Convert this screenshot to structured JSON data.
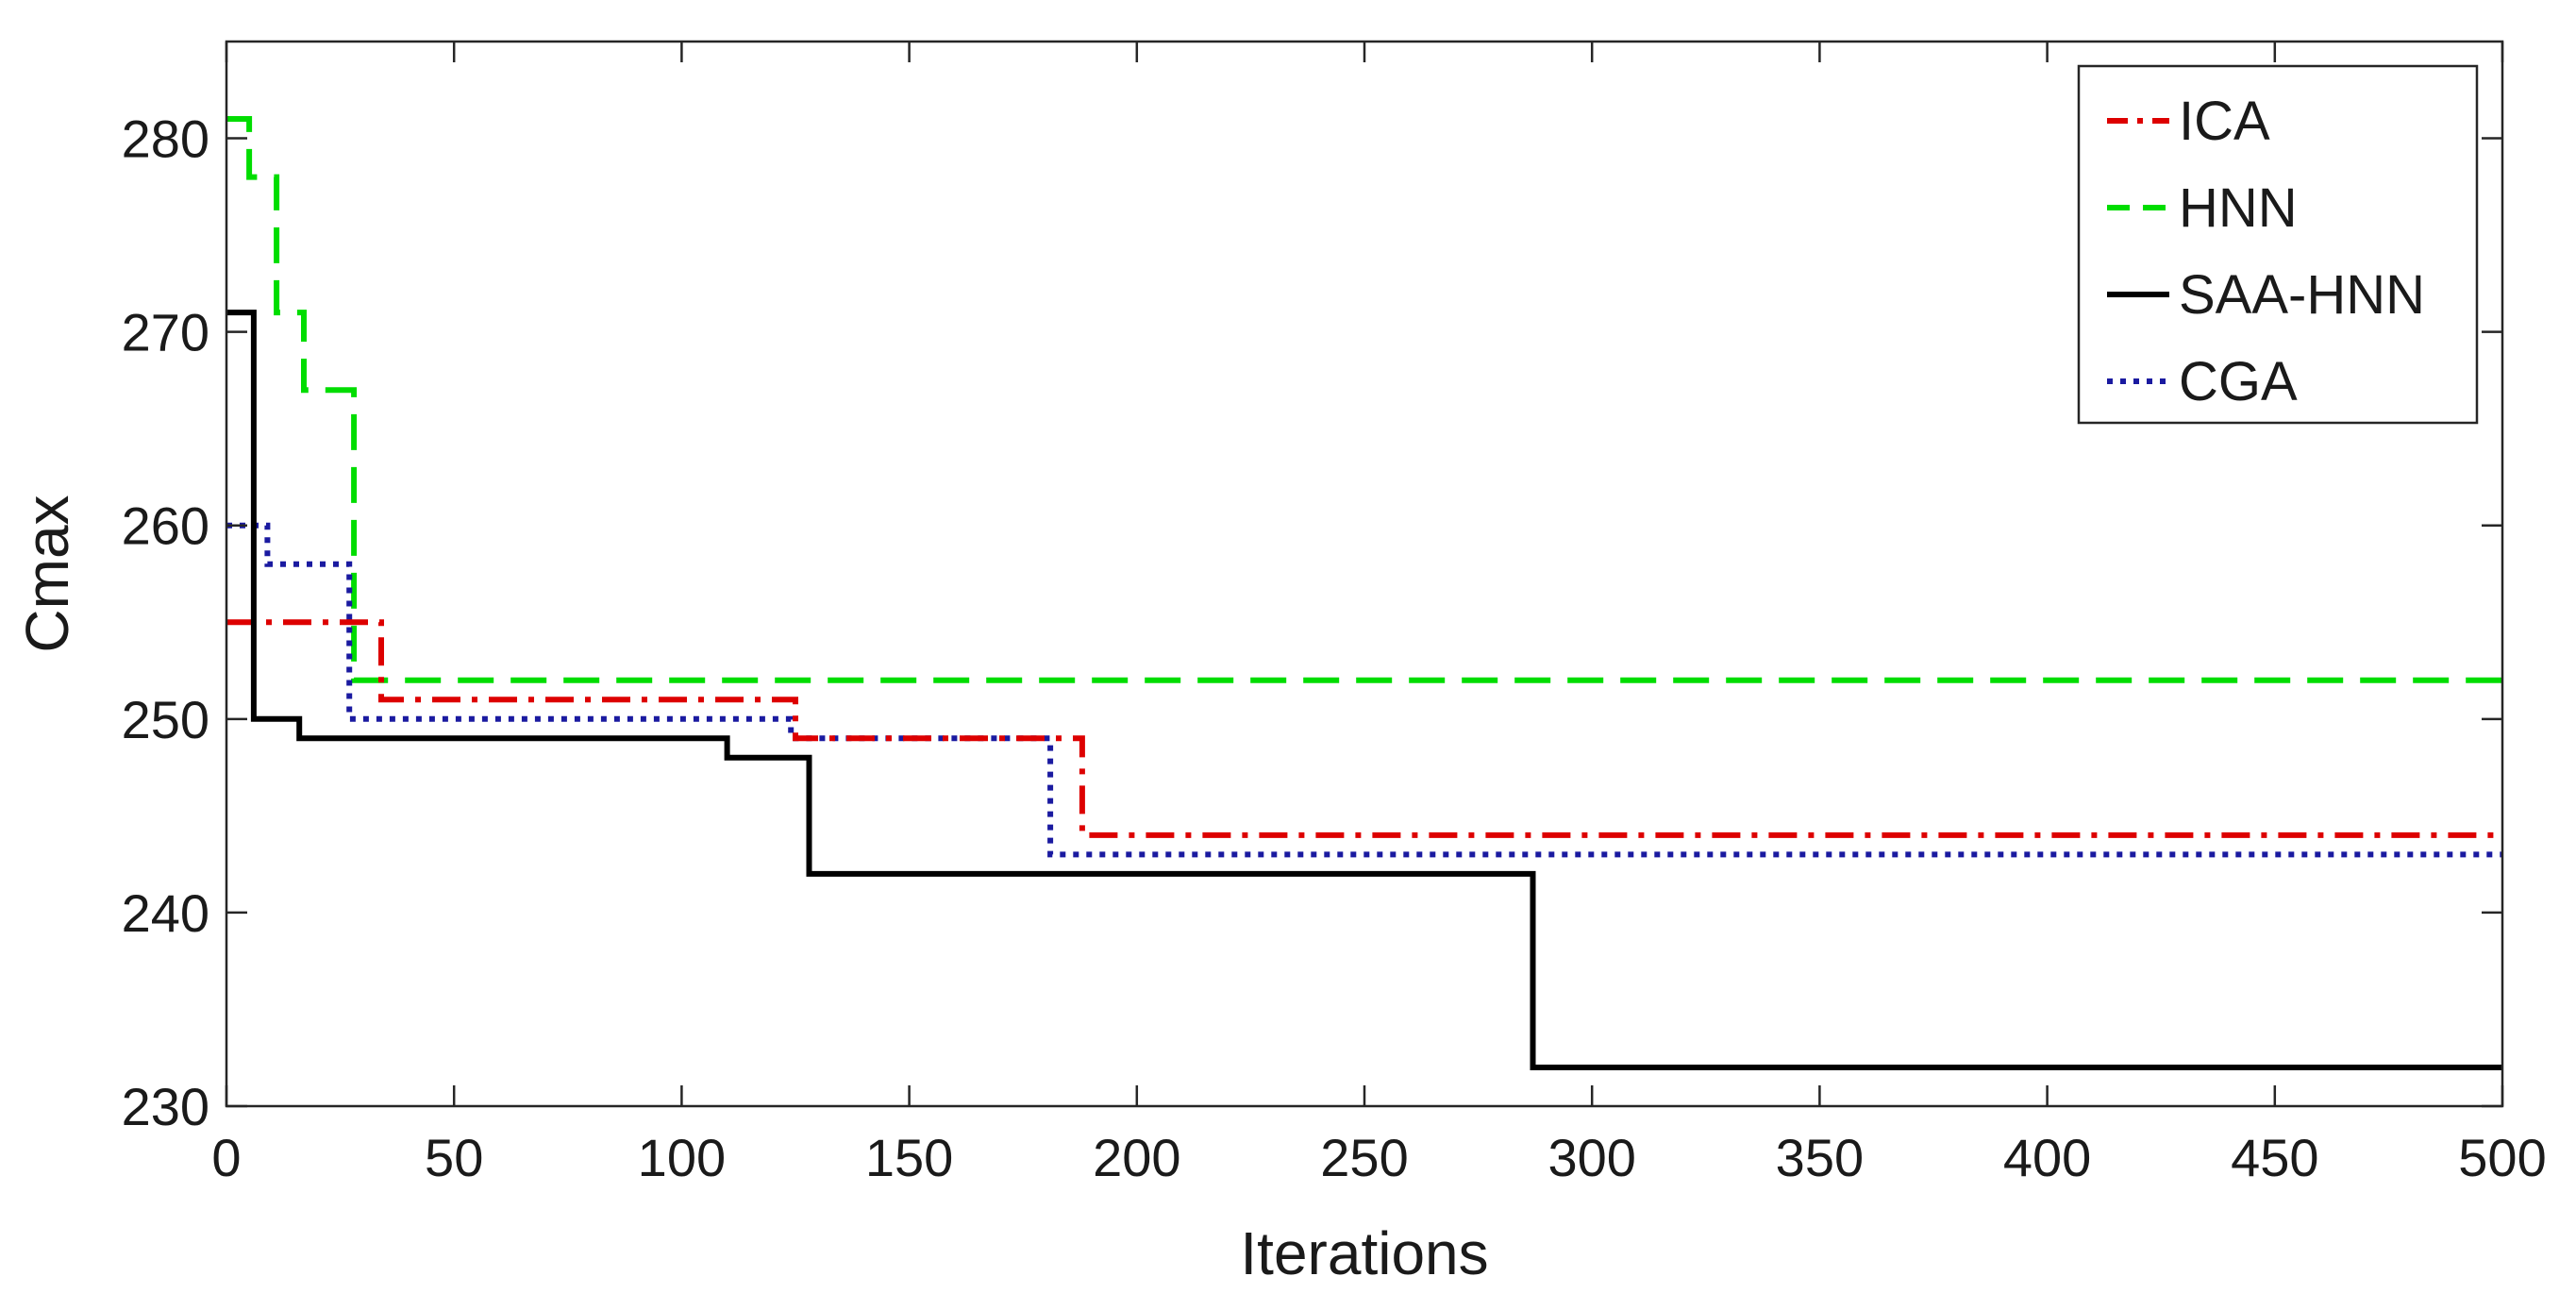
{
  "chart_data": {
    "type": "line",
    "title": "",
    "xlabel": "Iterations",
    "ylabel": "Cmax",
    "xlim": [
      0,
      500
    ],
    "ylim": [
      230,
      285
    ],
    "xticks": [
      0,
      50,
      100,
      150,
      200,
      250,
      300,
      350,
      400,
      450,
      500
    ],
    "yticks": [
      230,
      240,
      250,
      260,
      270,
      280
    ],
    "grid": false,
    "legend_position": "top-right",
    "series": [
      {
        "name": "ICA",
        "color": "#dd0000",
        "style": "dashdot",
        "points": [
          [
            0,
            255
          ],
          [
            34,
            255
          ],
          [
            34,
            251
          ],
          [
            125,
            251
          ],
          [
            125,
            249
          ],
          [
            188,
            249
          ],
          [
            188,
            244
          ],
          [
            500,
            244
          ]
        ]
      },
      {
        "name": "HNN",
        "color": "#00dd00",
        "style": "dashed",
        "points": [
          [
            0,
            281
          ],
          [
            5,
            281
          ],
          [
            5,
            278
          ],
          [
            11,
            278
          ],
          [
            11,
            271
          ],
          [
            17,
            271
          ],
          [
            17,
            267
          ],
          [
            28,
            267
          ],
          [
            28,
            252
          ],
          [
            500,
            252
          ]
        ]
      },
      {
        "name": "SAA-HNN",
        "color": "#000000",
        "style": "solid",
        "points": [
          [
            0,
            271
          ],
          [
            6,
            271
          ],
          [
            6,
            250
          ],
          [
            16,
            250
          ],
          [
            16,
            249
          ],
          [
            110,
            249
          ],
          [
            110,
            248
          ],
          [
            128,
            248
          ],
          [
            128,
            242
          ],
          [
            287,
            242
          ],
          [
            287,
            232
          ],
          [
            500,
            232
          ]
        ]
      },
      {
        "name": "CGA",
        "color": "#1a1aa0",
        "style": "dotted",
        "points": [
          [
            0,
            260
          ],
          [
            9,
            260
          ],
          [
            9,
            258
          ],
          [
            27,
            258
          ],
          [
            27,
            250
          ],
          [
            124,
            250
          ],
          [
            124,
            249
          ],
          [
            181,
            249
          ],
          [
            181,
            243
          ],
          [
            500,
            243
          ]
        ]
      }
    ]
  }
}
